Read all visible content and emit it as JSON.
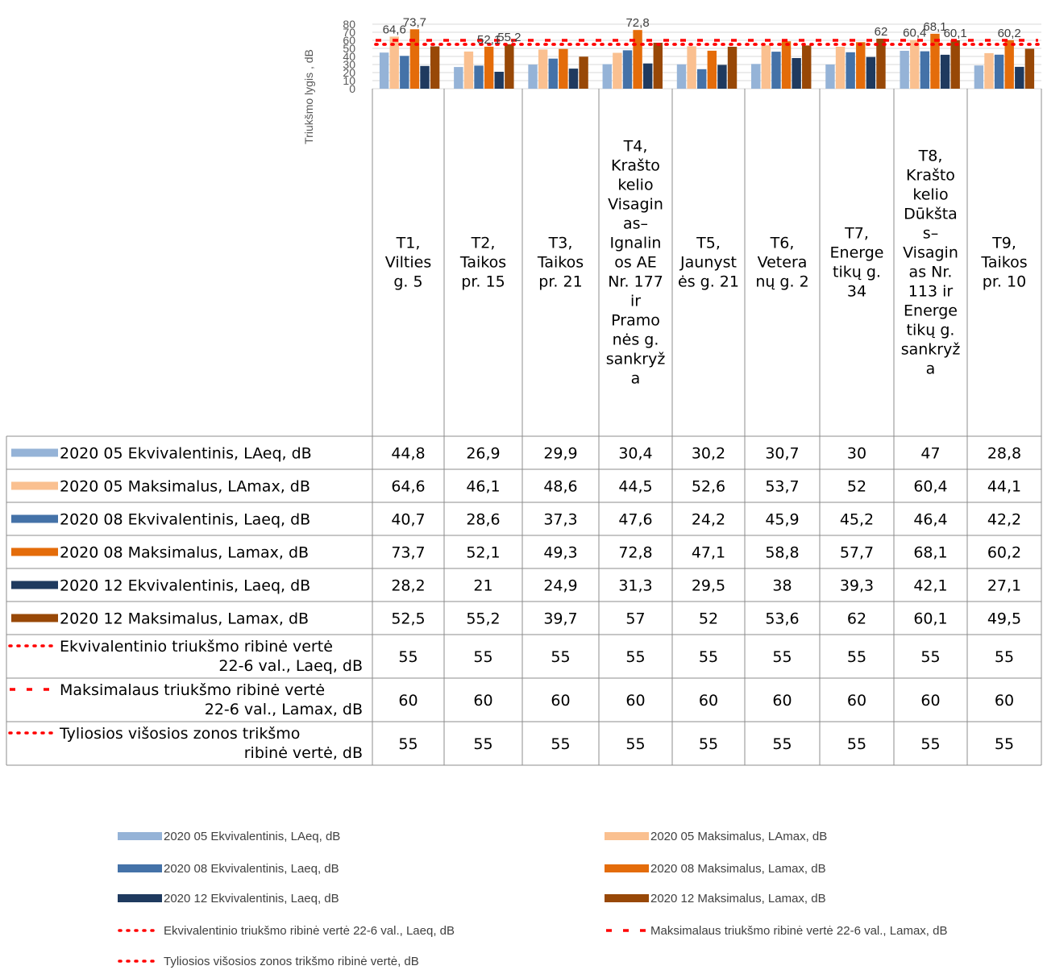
{
  "chart_data": {
    "type": "bar",
    "ylabel": "Triukšmo lygis , dB",
    "ylim": [
      0,
      80
    ],
    "yticks": [
      "0",
      "10",
      "20",
      "30",
      "40",
      "50",
      "60",
      "70",
      "80"
    ],
    "grid": true,
    "legend_position": "bottom",
    "categories": [
      "T1, Vilties g. 5",
      "T2, Taikos pr. 15",
      "T3, Taikos pr. 21",
      "T4, Krašto kelio Visaginas–Ignalinos AE Nr. 177 ir Pramonės g. sankryža",
      "T5, Jaunystės g. 21",
      "T6, Veteranų g. 2",
      "T7, Energetikų g. 34",
      "T8, Krašto kelio Dūkštas–Visaginas Nr. 113 ir Energetikų g. sankryža",
      "T9, Taikos pr. 10"
    ],
    "category_lines": [
      [
        "T1,",
        "Vilties",
        "g. 5"
      ],
      [
        "T2,",
        "Taikos",
        "pr. 15"
      ],
      [
        "T3,",
        "Taikos",
        "pr. 21"
      ],
      [
        "T4,",
        "Krašto",
        "kelio",
        "Visagin",
        "as–",
        "Ignalin",
        "os AE",
        "Nr. 177",
        "ir",
        "Pramo",
        "nės g.",
        "sankryž",
        "a"
      ],
      [
        "T5,",
        "Jaunyst",
        "ės g. 21"
      ],
      [
        "T6,",
        "Vetera",
        "nų g. 2"
      ],
      [
        "T7,",
        "Energe",
        "tikų g.",
        "34"
      ],
      [
        "T8,",
        "Krašto",
        "kelio",
        "Dūkšta",
        "s–",
        "Visagin",
        "as Nr.",
        "113 ir",
        "Energe",
        "tikų g.",
        "sankryž",
        "a"
      ],
      [
        "T9,",
        "Taikos",
        "pr. 10"
      ]
    ],
    "series": [
      {
        "name": "2020 05 Ekvivalentinis, LAeq, dB",
        "type": "bar",
        "color": "#95B3D7",
        "values": [
          44.8,
          26.9,
          29.9,
          30.4,
          30.2,
          30.7,
          30,
          47,
          28.8
        ],
        "display": [
          "44,8",
          "26,9",
          "29,9",
          "30,4",
          "30,2",
          "30,7",
          "30",
          "47",
          "28,8"
        ],
        "table_lines": [
          "2020 05 Ekvivalentinis, LAeq, dB"
        ]
      },
      {
        "name": "2020 05 Maksimalus, LAmax, dB",
        "type": "bar",
        "color": "#FAC090",
        "values": [
          64.6,
          46.1,
          48.6,
          44.5,
          52.6,
          53.7,
          52,
          60.4,
          44.1
        ],
        "display": [
          "64,6",
          "46,1",
          "48,6",
          "44,5",
          "52,6",
          "53,7",
          "52",
          "60,4",
          "44,1"
        ],
        "table_lines": [
          "2020 05 Maksimalus, LAmax, dB"
        ]
      },
      {
        "name": "2020 08 Ekvivalentinis, Laeq, dB",
        "type": "bar",
        "color": "#4472A8",
        "values": [
          40.7,
          28.6,
          37.3,
          47.6,
          24.2,
          45.9,
          45.2,
          46.4,
          42.2
        ],
        "display": [
          "40,7",
          "28,6",
          "37,3",
          "47,6",
          "24,2",
          "45,9",
          "45,2",
          "46,4",
          "42,2"
        ],
        "table_lines": [
          "2020 08 Ekvivalentinis, Laeq, dB"
        ]
      },
      {
        "name": "2020 08 Maksimalus, Lamax, dB",
        "type": "bar",
        "color": "#E46C0A",
        "values": [
          73.7,
          52.1,
          49.3,
          72.8,
          47.1,
          58.8,
          57.7,
          68.1,
          60.2
        ],
        "display": [
          "73,7",
          "52,1",
          "49,3",
          "72,8",
          "47,1",
          "58,8",
          "57,7",
          "68,1",
          "60,2"
        ],
        "table_lines": [
          "2020 08 Maksimalus, Lamax, dB"
        ]
      },
      {
        "name": "2020 12 Ekvivalentinis, Laeq, dB",
        "type": "bar",
        "color": "#1F3A5F",
        "values": [
          28.2,
          21,
          24.9,
          31.3,
          29.5,
          38,
          39.3,
          42.1,
          27.1
        ],
        "display": [
          "28,2",
          "21",
          "24,9",
          "31,3",
          "29,5",
          "38",
          "39,3",
          "42,1",
          "27,1"
        ],
        "table_lines": [
          "2020 12 Ekvivalentinis, Laeq, dB"
        ]
      },
      {
        "name": "2020 12 Maksimalus, Lamax, dB",
        "type": "bar",
        "color": "#984807",
        "values": [
          52.5,
          55.2,
          39.7,
          57,
          52,
          53.6,
          62,
          60.1,
          49.5
        ],
        "display": [
          "52,5",
          "55,2",
          "39,7",
          "57",
          "52",
          "53,6",
          "62",
          "60,1",
          "49,5"
        ],
        "table_lines": [
          "2020 12 Maksimalus, Lamax, dB"
        ]
      },
      {
        "name": "Ekvivalentinio triukšmo ribinė vertė 22-6 val., Laeq, dB",
        "type": "line",
        "dash": "dot",
        "color": "#FF0000",
        "values": [
          55,
          55,
          55,
          55,
          55,
          55,
          55,
          55,
          55
        ],
        "display": [
          "55",
          "55",
          "55",
          "55",
          "55",
          "55",
          "55",
          "55",
          "55"
        ],
        "table_lines": [
          "Ekvivalentinio triukšmo ribinė vertė",
          "22-6 val., Laeq, dB"
        ]
      },
      {
        "name": "Maksimalaus triukšmo ribinė vertė 22-6 val., Lamax, dB",
        "type": "line",
        "dash": "dash",
        "color": "#FF0000",
        "values": [
          60,
          60,
          60,
          60,
          60,
          60,
          60,
          60,
          60
        ],
        "display": [
          "60",
          "60",
          "60",
          "60",
          "60",
          "60",
          "60",
          "60",
          "60"
        ],
        "table_lines": [
          "Maksimalaus triukšmo ribinė vertė",
          "22-6 val., Lamax, dB"
        ]
      },
      {
        "name": "Tyliosios višosios zonos trikšmo ribinė vertė, dB",
        "type": "line",
        "dash": "dot",
        "color": "#FF0000",
        "values": [
          55,
          55,
          55,
          55,
          55,
          55,
          55,
          55,
          55
        ],
        "display": [
          "55",
          "55",
          "55",
          "55",
          "55",
          "55",
          "55",
          "55",
          "55"
        ],
        "table_lines": [
          "Tyliosios višosios zonos trikšmo",
          "ribinė vertė, dB"
        ]
      }
    ],
    "data_labels": [
      {
        "category_index": 0,
        "series_index": 1,
        "text": "64,6"
      },
      {
        "category_index": 0,
        "series_index": 3,
        "text": "73,7"
      },
      {
        "category_index": 1,
        "series_index": 3,
        "text": "52,1"
      },
      {
        "category_index": 1,
        "series_index": 5,
        "text": "55,2"
      },
      {
        "category_index": 3,
        "series_index": 3,
        "text": "72,8"
      },
      {
        "category_index": 6,
        "series_index": 5,
        "text": "62"
      },
      {
        "category_index": 7,
        "series_index": 1,
        "text": "60,4"
      },
      {
        "category_index": 7,
        "series_index": 3,
        "text": "68,1"
      },
      {
        "category_index": 7,
        "series_index": 5,
        "text": "60,1"
      },
      {
        "category_index": 8,
        "series_index": 3,
        "text": "60,2"
      }
    ]
  }
}
